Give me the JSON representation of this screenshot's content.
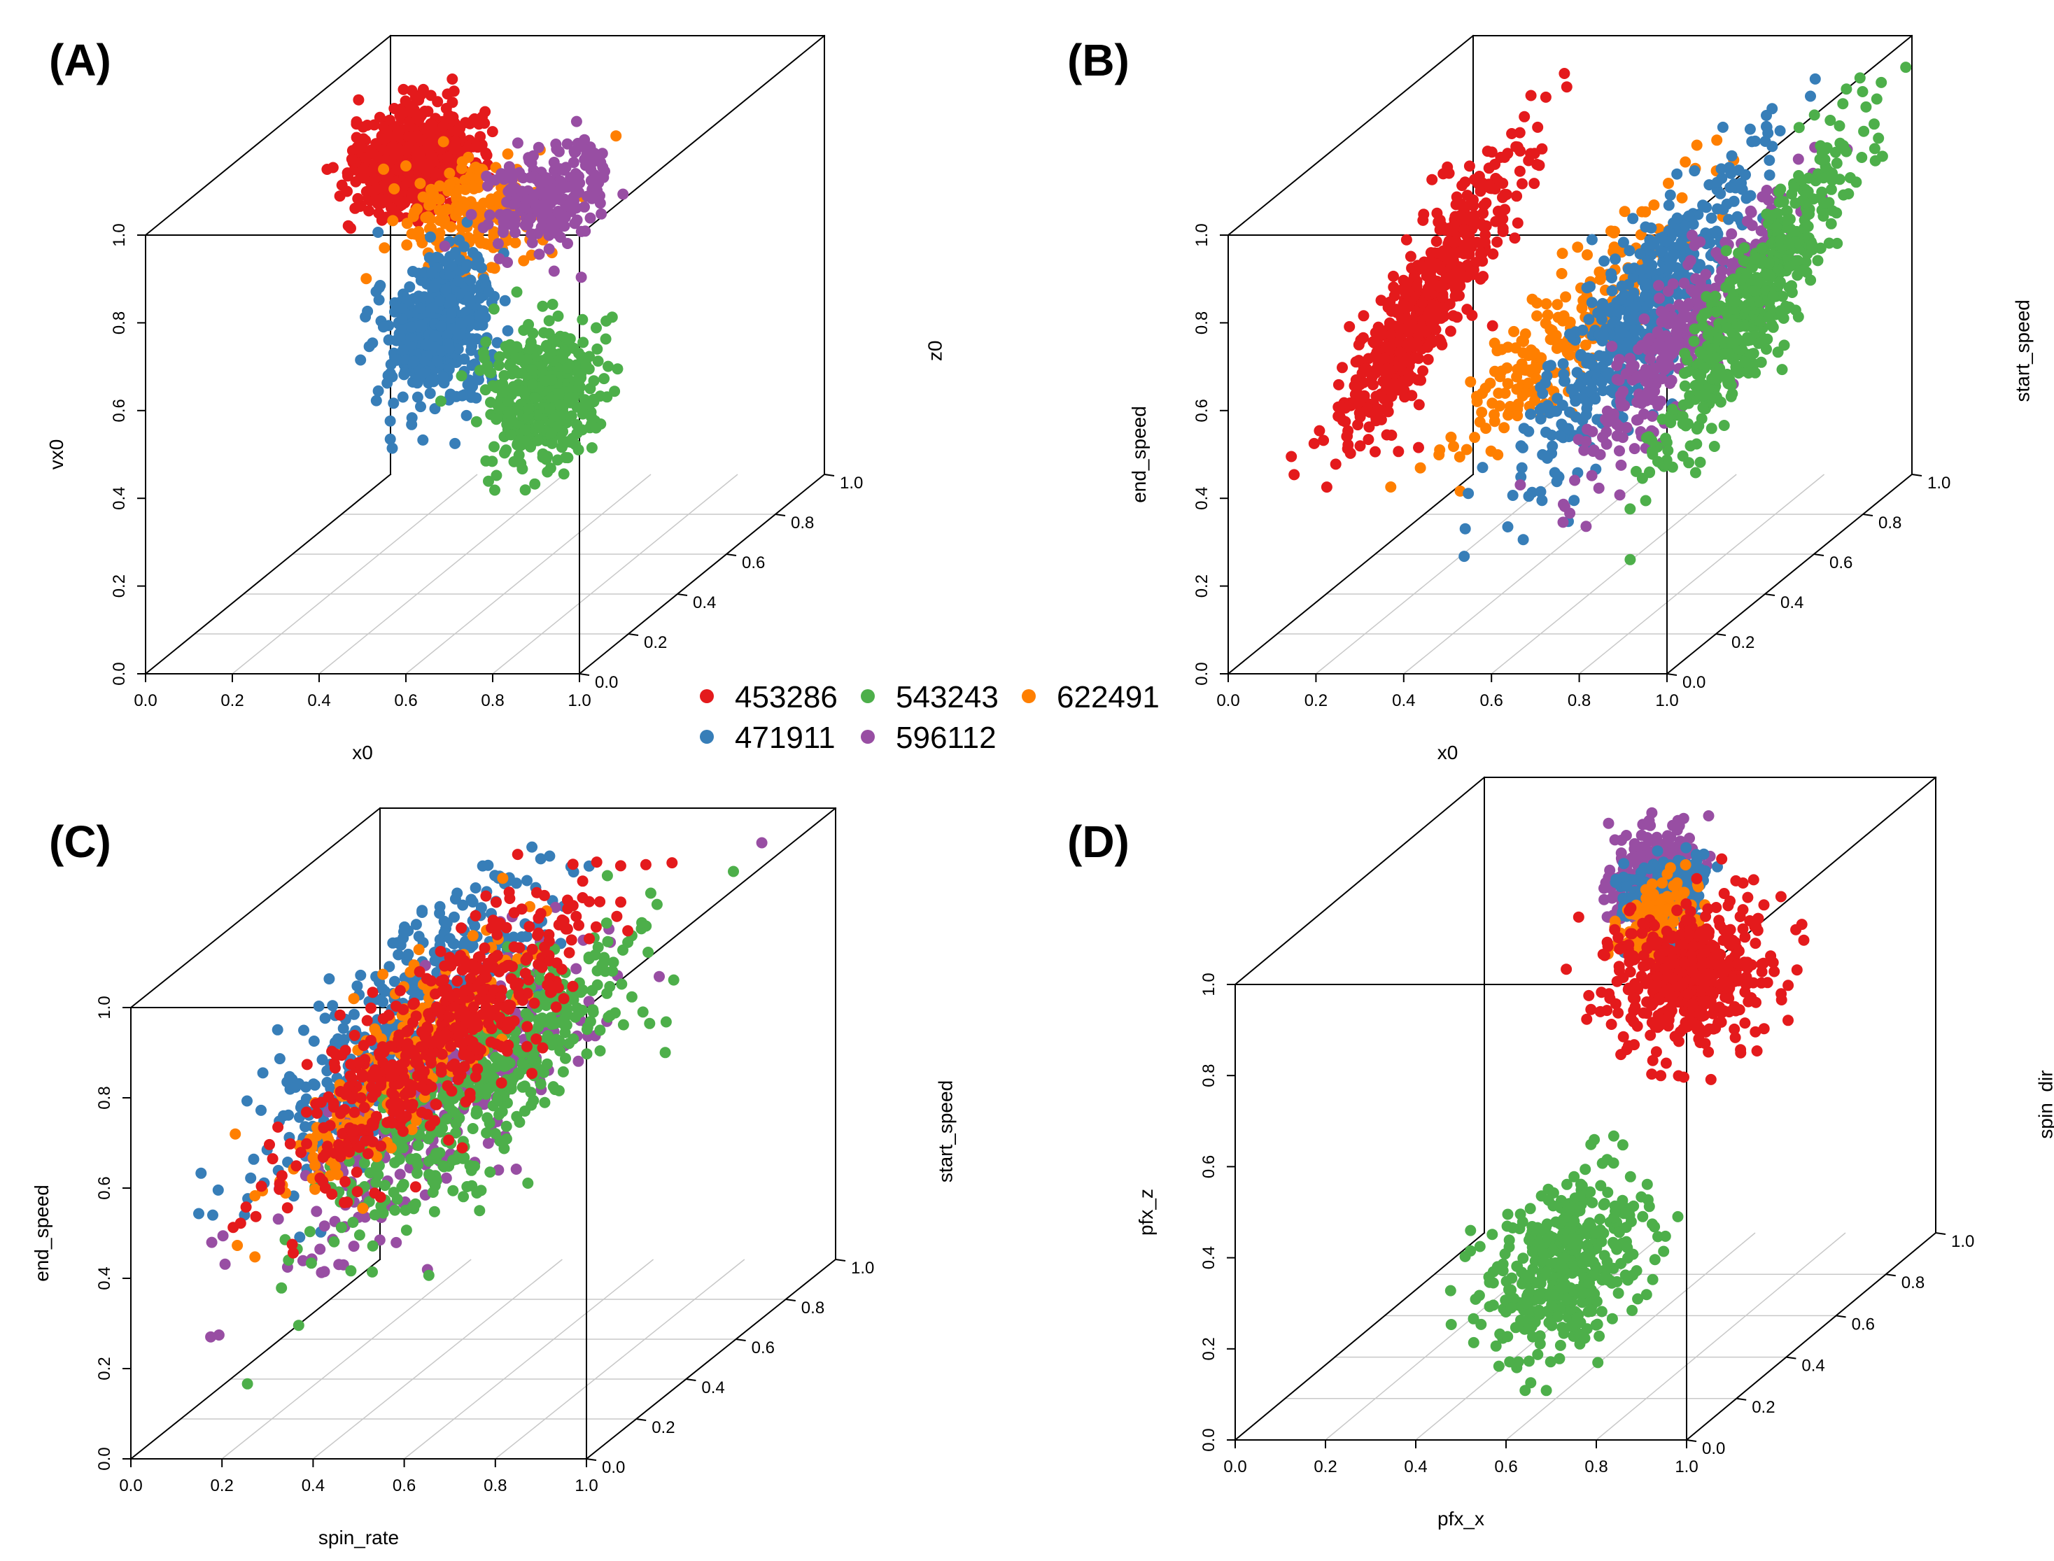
{
  "figure": {
    "legend": {
      "title": "",
      "entries": [
        {
          "id": "453286",
          "label": "453286",
          "color": "#e41a1c"
        },
        {
          "id": "543243",
          "label": "543243",
          "color": "#4daf4a"
        },
        {
          "id": "622491",
          "label": "622491",
          "color": "#ff7f00"
        },
        {
          "id": "471911",
          "label": "471911",
          "color": "#377eb8"
        },
        {
          "id": "596112",
          "label": "596112",
          "color": "#984ea3"
        }
      ]
    }
  },
  "chart_data": [
    {
      "type": "scatter",
      "panel_label": "(A)",
      "title": "",
      "xlabel": "x0",
      "ylabel": "vx0",
      "zlabel": "z0",
      "xlim": [
        0,
        1
      ],
      "ylim": [
        0,
        1
      ],
      "zlim": [
        0,
        1
      ],
      "x_ticks": [
        "0.0",
        "0.2",
        "0.4",
        "0.6",
        "0.8",
        "1.0"
      ],
      "y_ticks": [
        "0.0",
        "0.2",
        "0.4",
        "0.6",
        "0.8",
        "1.0"
      ],
      "z_ticks": [
        "0.0",
        "0.2",
        "0.4",
        "0.6",
        "0.8",
        "1.0"
      ],
      "grid": "bottom-plane",
      "series": [
        {
          "name": "453286",
          "color": "#e41a1c",
          "n": 650,
          "center": [
            0.17,
            0.81,
            0.8
          ],
          "sd": [
            0.06,
            0.055,
            0.06
          ],
          "corr": 0
        },
        {
          "name": "622491",
          "color": "#ff7f00",
          "n": 200,
          "center": [
            0.4,
            0.77,
            0.62
          ],
          "sd": [
            0.07,
            0.06,
            0.07
          ],
          "corr": 0
        },
        {
          "name": "471911",
          "color": "#377eb8",
          "n": 450,
          "center": [
            0.42,
            0.58,
            0.45
          ],
          "sd": [
            0.05,
            0.085,
            0.06
          ],
          "corr": 0
        },
        {
          "name": "596112",
          "color": "#984ea3",
          "n": 220,
          "center": [
            0.58,
            0.81,
            0.62
          ],
          "sd": [
            0.055,
            0.055,
            0.07
          ],
          "corr": 0
        },
        {
          "name": "543243",
          "color": "#4daf4a",
          "n": 420,
          "center": [
            0.8,
            0.55,
            0.2
          ],
          "sd": [
            0.06,
            0.075,
            0.06
          ],
          "corr": 0
        }
      ]
    },
    {
      "type": "scatter",
      "panel_label": "(B)",
      "title": "",
      "xlabel": "x0",
      "ylabel": "end_speed",
      "zlabel": "start_speed",
      "xlim": [
        0,
        1
      ],
      "ylim": [
        0,
        1
      ],
      "zlim": [
        0,
        1
      ],
      "x_ticks": [
        "0.0",
        "0.2",
        "0.4",
        "0.6",
        "0.8",
        "1.0"
      ],
      "y_ticks": [
        "0.0",
        "0.2",
        "0.4",
        "0.6",
        "0.8",
        "1.0"
      ],
      "z_ticks": [
        "0.0",
        "0.2",
        "0.4",
        "0.6",
        "0.8",
        "1.0"
      ],
      "grid": "bottom-plane",
      "series": [
        {
          "name": "453286",
          "color": "#e41a1c",
          "n": 550,
          "center": [
            0.17,
            0.62,
            0.5
          ],
          "sd": [
            0.04,
            0.13,
            0.14
          ],
          "corr": 0.9
        },
        {
          "name": "622491",
          "color": "#ff7f00",
          "n": 220,
          "center": [
            0.55,
            0.6,
            0.4
          ],
          "sd": [
            0.08,
            0.11,
            0.14
          ],
          "corr": 0.8
        },
        {
          "name": "471911",
          "color": "#377eb8",
          "n": 500,
          "center": [
            0.7,
            0.62,
            0.42
          ],
          "sd": [
            0.07,
            0.15,
            0.16
          ],
          "corr": 0.85
        },
        {
          "name": "596112",
          "color": "#984ea3",
          "n": 300,
          "center": [
            0.8,
            0.58,
            0.42
          ],
          "sd": [
            0.06,
            0.13,
            0.14
          ],
          "corr": 0.85
        },
        {
          "name": "543243",
          "color": "#4daf4a",
          "n": 500,
          "center": [
            0.93,
            0.64,
            0.5
          ],
          "sd": [
            0.04,
            0.14,
            0.15
          ],
          "corr": 0.9
        }
      ]
    },
    {
      "type": "scatter",
      "panel_label": "(C)",
      "title": "",
      "xlabel": "spin_rate",
      "ylabel": "end_speed",
      "zlabel": "start_speed",
      "xlim": [
        0,
        1
      ],
      "ylim": [
        0,
        1
      ],
      "zlim": [
        0,
        1
      ],
      "x_ticks": [
        "0.0",
        "0.2",
        "0.4",
        "0.6",
        "0.8",
        "1.0"
      ],
      "y_ticks": [
        "0.0",
        "0.2",
        "0.4",
        "0.6",
        "0.8",
        "1.0"
      ],
      "z_ticks": [
        "0.0",
        "0.2",
        "0.4",
        "0.6",
        "0.8",
        "1.0"
      ],
      "grid": "bottom-plane",
      "series": [
        {
          "name": "471911",
          "color": "#377eb8",
          "n": 450,
          "center": [
            0.3,
            0.72,
            0.5
          ],
          "sd": [
            0.1,
            0.15,
            0.16
          ],
          "corr": 0.7
        },
        {
          "name": "596112",
          "color": "#984ea3",
          "n": 300,
          "center": [
            0.45,
            0.62,
            0.45
          ],
          "sd": [
            0.12,
            0.14,
            0.16
          ],
          "corr": 0.7
        },
        {
          "name": "543243",
          "color": "#4daf4a",
          "n": 450,
          "center": [
            0.55,
            0.66,
            0.4
          ],
          "sd": [
            0.12,
            0.14,
            0.16
          ],
          "corr": 0.7
        },
        {
          "name": "622491",
          "color": "#ff7f00",
          "n": 250,
          "center": [
            0.35,
            0.68,
            0.45
          ],
          "sd": [
            0.08,
            0.12,
            0.15
          ],
          "corr": 0.7
        },
        {
          "name": "453286",
          "color": "#e41a1c",
          "n": 500,
          "center": [
            0.4,
            0.7,
            0.5
          ],
          "sd": [
            0.11,
            0.13,
            0.16
          ],
          "corr": 0.7
        }
      ]
    },
    {
      "type": "scatter",
      "panel_label": "(D)",
      "title": "",
      "xlabel": "pfx_x",
      "ylabel": "pfx_z",
      "zlabel": "spin_dir",
      "xlim": [
        0,
        1
      ],
      "ylim": [
        0,
        1
      ],
      "zlim": [
        0,
        1
      ],
      "x_ticks": [
        "0.0",
        "0.2",
        "0.4",
        "0.6",
        "0.8",
        "1.0"
      ],
      "y_ticks": [
        "0.0",
        "0.2",
        "0.4",
        "0.6",
        "0.8",
        "1.0"
      ],
      "z_ticks": [
        "0.0",
        "0.2",
        "0.4",
        "0.6",
        "0.8",
        "1.0"
      ],
      "grid": "bottom-plane",
      "series": [
        {
          "name": "543243",
          "color": "#4daf4a",
          "n": 420,
          "center": [
            0.6,
            0.28,
            0.25
          ],
          "sd": [
            0.07,
            0.08,
            0.12
          ],
          "corr": 0
        },
        {
          "name": "596112",
          "color": "#984ea3",
          "n": 260,
          "center": [
            0.48,
            0.88,
            0.8
          ],
          "sd": [
            0.04,
            0.04,
            0.05
          ],
          "corr": 0
        },
        {
          "name": "471911",
          "color": "#377eb8",
          "n": 220,
          "center": [
            0.52,
            0.84,
            0.78
          ],
          "sd": [
            0.04,
            0.04,
            0.05
          ],
          "corr": 0
        },
        {
          "name": "622491",
          "color": "#ff7f00",
          "n": 120,
          "center": [
            0.52,
            0.8,
            0.75
          ],
          "sd": [
            0.04,
            0.04,
            0.05
          ],
          "corr": 0
        },
        {
          "name": "453286",
          "color": "#e41a1c",
          "n": 520,
          "center": [
            0.65,
            0.72,
            0.65
          ],
          "sd": [
            0.08,
            0.07,
            0.08
          ],
          "corr": 0
        }
      ]
    }
  ]
}
